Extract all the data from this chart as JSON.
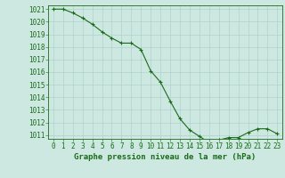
{
  "hours": [
    0,
    1,
    2,
    3,
    4,
    5,
    6,
    7,
    8,
    9,
    10,
    11,
    12,
    13,
    14,
    15,
    16,
    17,
    18,
    19,
    20,
    21,
    22,
    23
  ],
  "pressure": [
    1021.0,
    1021.0,
    1020.7,
    1020.3,
    1019.8,
    1019.2,
    1018.7,
    1018.3,
    1018.3,
    1017.8,
    1016.1,
    1015.2,
    1013.7,
    1012.3,
    1011.4,
    1010.9,
    1010.4,
    1010.6,
    1010.8,
    1010.8,
    1011.2,
    1011.5,
    1011.5,
    1011.1
  ],
  "line_color": "#1a6b1a",
  "marker_color": "#1a6b1a",
  "bg_color": "#cce8e0",
  "grid_color": "#aacccc",
  "title": "Graphe pression niveau de la mer (hPa)",
  "ylabel_min": 1011,
  "ylabel_max": 1021,
  "xlabel_min": 0,
  "xlabel_max": 23,
  "tick_color": "#1a6b1a",
  "title_color": "#1a6b1a",
  "title_fontsize": 6.5,
  "tick_fontsize": 5.5
}
